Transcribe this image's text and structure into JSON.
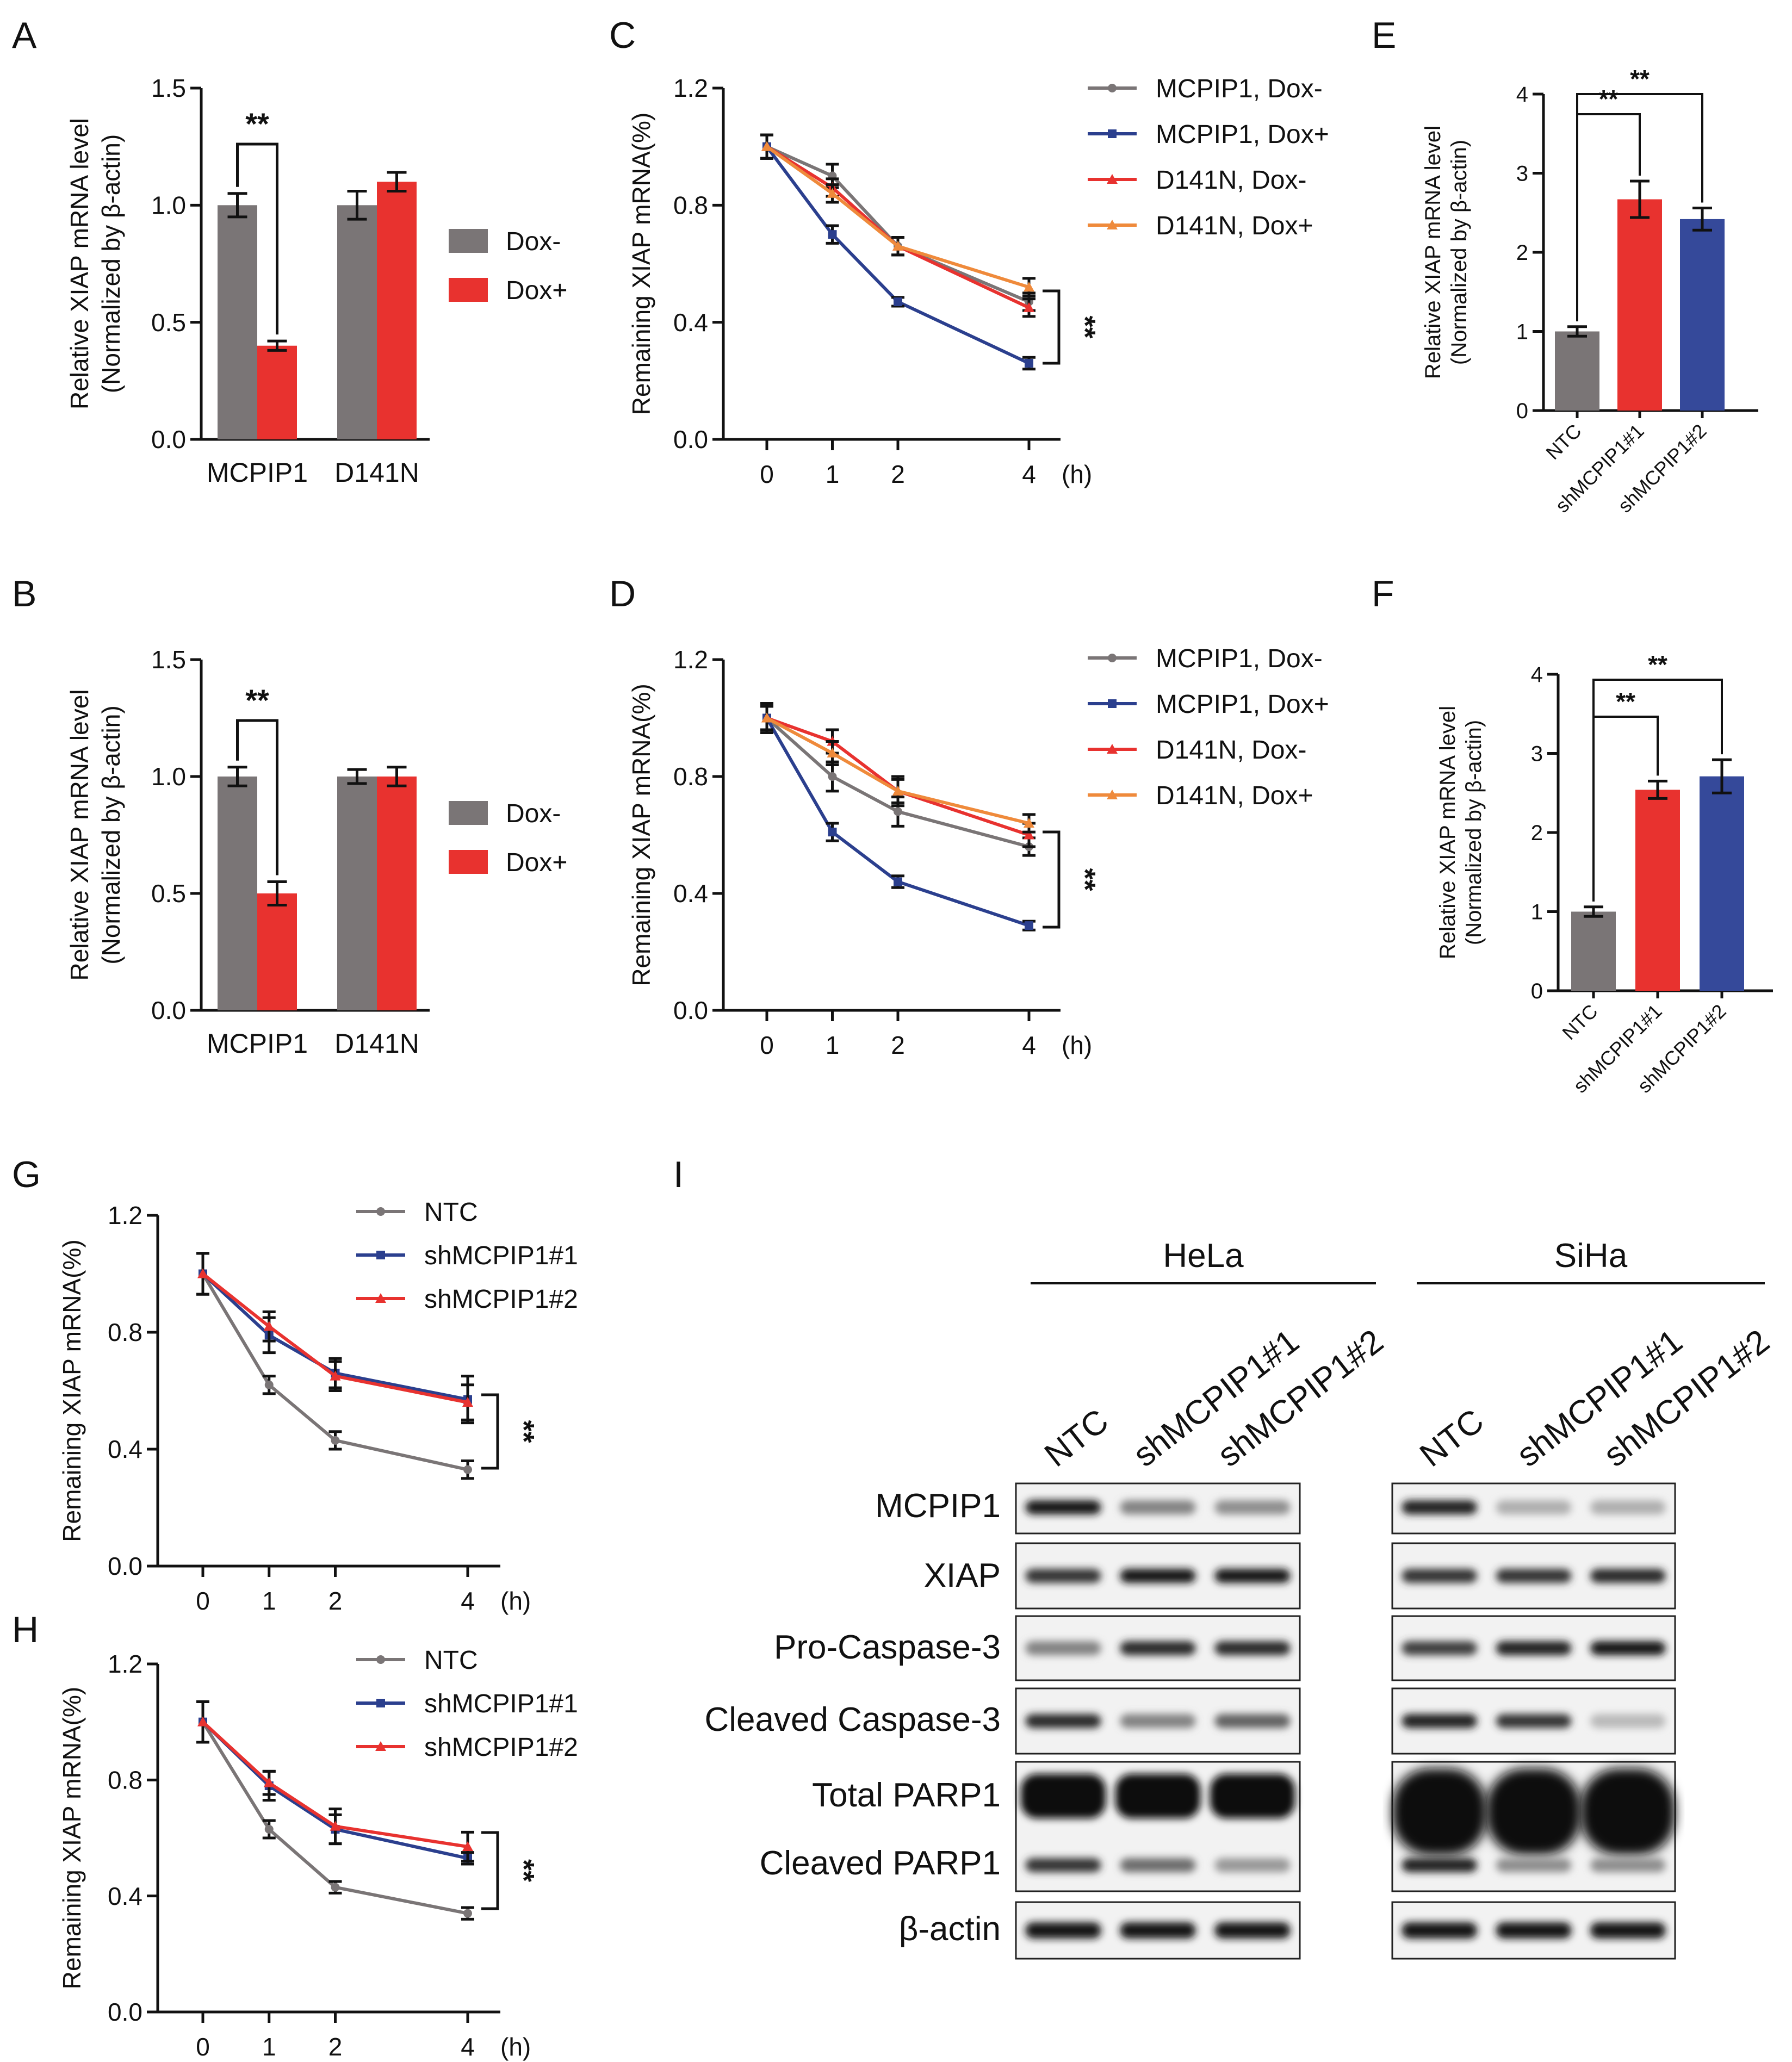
{
  "panel_letters": {
    "A": "A",
    "B": "B",
    "C": "C",
    "D": "D",
    "E": "E",
    "F": "F",
    "G": "G",
    "H": "H",
    "I": "I"
  },
  "colors": {
    "gray": "#7a7576",
    "red": "#e8322f",
    "blue": "#2b3f8e",
    "orange": "#ef8a3b",
    "navy": "#35499a"
  },
  "chart_data": [
    {
      "id": "A",
      "type": "bar",
      "ylabel": "Relative XIAP mRNA level",
      "ylabel2": "(Normalized by β-actin)",
      "yticks": [
        "0.0",
        "0.5",
        "1.0",
        "1.5"
      ],
      "ylim": [
        0,
        1.5
      ],
      "categories": [
        "MCPIP1",
        "D141N"
      ],
      "series": [
        {
          "name": "Dox-",
          "values": [
            1.0,
            1.0
          ],
          "errors": [
            0.05,
            0.06
          ]
        },
        {
          "name": "Dox+",
          "values": [
            0.4,
            1.1
          ],
          "errors": [
            0.02,
            0.04
          ]
        }
      ],
      "legend": [
        "Dox-",
        "Dox+"
      ],
      "sig": "**"
    },
    {
      "id": "B",
      "type": "bar",
      "ylabel": "Relative XIAP mRNA level",
      "ylabel2": "(Normalized by β-actin)",
      "yticks": [
        "0.0",
        "0.5",
        "1.0",
        "1.5"
      ],
      "ylim": [
        0,
        1.5
      ],
      "categories": [
        "MCPIP1",
        "D141N"
      ],
      "series": [
        {
          "name": "Dox-",
          "values": [
            1.0,
            1.0
          ],
          "errors": [
            0.04,
            0.03
          ]
        },
        {
          "name": "Dox+",
          "values": [
            0.5,
            1.0
          ],
          "errors": [
            0.05,
            0.04
          ]
        }
      ],
      "legend": [
        "Dox-",
        "Dox+"
      ],
      "sig": "**"
    },
    {
      "id": "C",
      "type": "line",
      "ylabel": "Remaining XIAP mRNA(%)",
      "yticks": [
        "0.0",
        "0.4",
        "0.8",
        "1.2"
      ],
      "ylim": [
        0,
        1.2
      ],
      "x": [
        0,
        1,
        2,
        4
      ],
      "xticks": [
        "0",
        "1",
        "2",
        "4"
      ],
      "xunit": "(h)",
      "series": [
        {
          "name": "MCPIP1, Dox-",
          "values": [
            1.0,
            0.9,
            0.66,
            0.47
          ],
          "errors": [
            0.04,
            0.04,
            0.03,
            0.03
          ]
        },
        {
          "name": "MCPIP1, Dox+",
          "values": [
            1.0,
            0.7,
            0.47,
            0.26
          ],
          "errors": [
            0.04,
            0.03,
            0.015,
            0.02
          ]
        },
        {
          "name": "D141N, Dox-",
          "values": [
            1.0,
            0.86,
            0.66,
            0.45
          ],
          "errors": [
            0.04,
            0.03,
            0.03,
            0.03
          ]
        },
        {
          "name": "D141N, Dox+",
          "values": [
            1.0,
            0.84,
            0.66,
            0.52
          ],
          "errors": [
            0.04,
            0.03,
            0.03,
            0.03
          ]
        }
      ],
      "sig": "**"
    },
    {
      "id": "D",
      "type": "line",
      "ylabel": "Remaining XIAP mRNA(%)",
      "yticks": [
        "0.0",
        "0.4",
        "0.8",
        "1.2"
      ],
      "ylim": [
        0,
        1.2
      ],
      "x": [
        0,
        1,
        2,
        4
      ],
      "xticks": [
        "0",
        "1",
        "2",
        "4"
      ],
      "xunit": "(h)",
      "series": [
        {
          "name": "MCPIP1, Dox-",
          "values": [
            1.0,
            0.8,
            0.68,
            0.56
          ],
          "errors": [
            0.05,
            0.05,
            0.05,
            0.03
          ]
        },
        {
          "name": "MCPIP1, Dox+",
          "values": [
            1.0,
            0.61,
            0.44,
            0.29
          ],
          "errors": [
            0.04,
            0.03,
            0.02,
            0.015
          ]
        },
        {
          "name": "D141N, Dox-",
          "values": [
            1.0,
            0.92,
            0.75,
            0.6
          ],
          "errors": [
            0.05,
            0.04,
            0.05,
            0.04
          ]
        },
        {
          "name": "D141N, Dox+",
          "values": [
            1.0,
            0.88,
            0.75,
            0.64
          ],
          "errors": [
            0.05,
            0.04,
            0.04,
            0.03
          ]
        }
      ],
      "sig": "**"
    },
    {
      "id": "E",
      "type": "bar",
      "ylabel": "Relative XIAP mRNA level",
      "ylabel2": "(Normalized by β-actin)",
      "yticks": [
        "0",
        "1",
        "2",
        "3",
        "4"
      ],
      "ylim": [
        0,
        4
      ],
      "categories": [
        "NTC",
        "shMCPIP1#1",
        "shMCPIP1#2"
      ],
      "values": [
        1.0,
        2.67,
        2.42
      ],
      "errors": [
        0.06,
        0.23,
        0.14
      ],
      "sig": [
        "**",
        "**"
      ]
    },
    {
      "id": "F",
      "type": "bar",
      "ylabel": "Relative XIAP mRNA level",
      "ylabel2": "(Normalized by β-actin)",
      "yticks": [
        "0",
        "1",
        "2",
        "3",
        "4"
      ],
      "ylim": [
        0,
        4
      ],
      "categories": [
        "NTC",
        "shMCPIP1#1",
        "shMCPIP1#2"
      ],
      "values": [
        1.0,
        2.54,
        2.71
      ],
      "errors": [
        0.06,
        0.11,
        0.21
      ],
      "sig": [
        "**",
        "**"
      ]
    },
    {
      "id": "G",
      "type": "line",
      "ylabel": "Remaining XIAP mRNA(%)",
      "yticks": [
        "0.0",
        "0.4",
        "0.8",
        "1.2"
      ],
      "ylim": [
        0,
        1.2
      ],
      "x": [
        0,
        1,
        2,
        4
      ],
      "xticks": [
        "0",
        "1",
        "2",
        "4"
      ],
      "xunit": "(h)",
      "series": [
        {
          "name": "NTC",
          "values": [
            1.0,
            0.62,
            0.43,
            0.33
          ],
          "errors": [
            0.07,
            0.03,
            0.03,
            0.03
          ]
        },
        {
          "name": "shMCPIP1#1",
          "values": [
            1.0,
            0.79,
            0.66,
            0.57
          ],
          "errors": [
            0.07,
            0.06,
            0.05,
            0.08
          ]
        },
        {
          "name": "shMCPIP1#2",
          "values": [
            1.0,
            0.82,
            0.65,
            0.56
          ],
          "errors": [
            0.07,
            0.05,
            0.05,
            0.06
          ]
        }
      ],
      "sig": "**"
    },
    {
      "id": "H",
      "type": "line",
      "ylabel": "Remaining XIAP mRNA(%)",
      "yticks": [
        "0.0",
        "0.4",
        "0.8",
        "1.2"
      ],
      "ylim": [
        0,
        1.2
      ],
      "x": [
        0,
        1,
        2,
        4
      ],
      "xticks": [
        "0",
        "1",
        "2",
        "4"
      ],
      "xunit": "(h)",
      "series": [
        {
          "name": "NTC",
          "values": [
            1.0,
            0.63,
            0.43,
            0.34
          ],
          "errors": [
            0.07,
            0.03,
            0.02,
            0.02
          ]
        },
        {
          "name": "shMCPIP1#1",
          "values": [
            1.0,
            0.78,
            0.63,
            0.53
          ],
          "errors": [
            0.07,
            0.05,
            0.05,
            0.02
          ]
        },
        {
          "name": "shMCPIP1#2",
          "values": [
            1.0,
            0.79,
            0.64,
            0.57
          ],
          "errors": [
            0.07,
            0.04,
            0.06,
            0.05
          ]
        }
      ],
      "sig": "**"
    }
  ],
  "blot": {
    "groups": [
      "HeLa",
      "SiHa"
    ],
    "lanes": [
      "NTC",
      "shMCPIP1#1",
      "shMCPIP1#2"
    ],
    "rows": [
      "MCPIP1",
      "XIAP",
      "Pro-Caspase-3",
      "Cleaved Caspase-3",
      "Total PARP1",
      "Cleaved PARP1",
      "β-actin"
    ],
    "intensity": {
      "HeLa": {
        "MCPIP1": [
          0.95,
          0.45,
          0.4
        ],
        "XIAP": [
          0.8,
          0.95,
          0.95
        ],
        "Pro-Caspase-3": [
          0.45,
          0.85,
          0.85
        ],
        "Cleaved Caspase-3": [
          0.85,
          0.45,
          0.6
        ],
        "Cleaved PARP1": [
          0.8,
          0.55,
          0.35
        ],
        "β-actin": [
          0.95,
          0.95,
          0.95
        ]
      },
      "SiHa": {
        "MCPIP1": [
          0.9,
          0.25,
          0.25
        ],
        "XIAP": [
          0.8,
          0.8,
          0.85
        ],
        "Pro-Caspase-3": [
          0.75,
          0.9,
          0.95
        ],
        "Cleaved Caspase-3": [
          0.9,
          0.8,
          0.2
        ],
        "Cleaved PARP1": [
          0.9,
          0.4,
          0.4
        ],
        "β-actin": [
          0.95,
          0.95,
          0.95
        ]
      }
    }
  }
}
